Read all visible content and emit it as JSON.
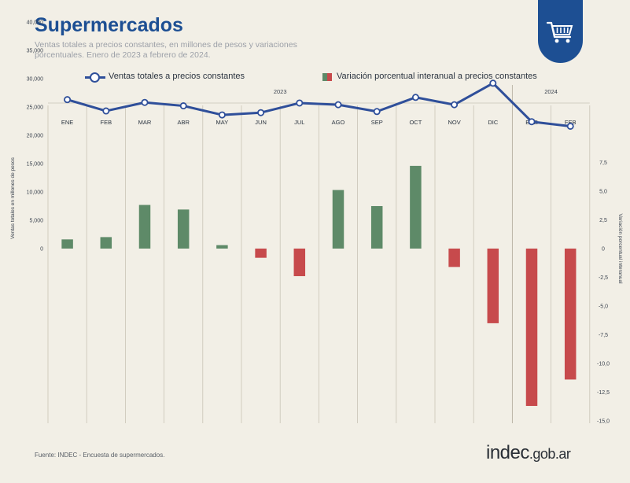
{
  "header": {
    "title": "Supermercados",
    "subtitle_line1": "Ventas totales a precios constantes, en millones de pesos y variaciones",
    "subtitle_line2": "porcentuales. Enero de 2023 a febrero de 2024."
  },
  "badge": {
    "icon": "shopping-cart-icon",
    "color": "#1d4f93"
  },
  "legend": {
    "line_label": "Ventas totales a precios constantes",
    "bar_label": "Variación porcentual interanual a precios constantes"
  },
  "colors": {
    "line": "#2f4f9a",
    "positive_bar": "#5e8a68",
    "negative_bar": "#c74a4c",
    "title": "#1d4f93"
  },
  "chart_data": {
    "type": "bar+line",
    "years": [
      {
        "label": "2023",
        "months": 12
      },
      {
        "label": "2024",
        "months": 2
      }
    ],
    "categories": [
      "ENE",
      "FEB",
      "MAR",
      "ABR",
      "MAY",
      "JUN",
      "JUL",
      "AGO",
      "SEP",
      "OCT",
      "NOV",
      "DIC",
      "ENE",
      "FEB"
    ],
    "left_axis": {
      "label": "Ventas totales en millones de pesos",
      "ticks": [
        "40,000",
        "35,000",
        "30,000",
        "25,000",
        "20,000",
        "15,000",
        "10,000",
        "5,000",
        "0"
      ],
      "tick_values": [
        40000,
        35000,
        30000,
        25000,
        20000,
        15000,
        10000,
        5000,
        0
      ],
      "ylim": [
        0,
        40000
      ]
    },
    "right_axis": {
      "label": "Variación porcentual interanual",
      "ticks": [
        "7,5",
        "5,0",
        "2,5",
        "0",
        "-2,5",
        "-5,0",
        "-7,5",
        "-10,0",
        "-12,5",
        "-15,0"
      ],
      "tick_values": [
        7.5,
        5.0,
        2.5,
        0,
        -2.5,
        -5.0,
        -7.5,
        -10.0,
        -12.5,
        -15.0
      ],
      "ylim": [
        -15,
        10
      ]
    },
    "series": [
      {
        "name": "Ventas totales a precios constantes",
        "kind": "line",
        "axis": "left",
        "values": [
          26300,
          24300,
          25800,
          25200,
          23600,
          24000,
          25700,
          25400,
          24200,
          26700,
          25400,
          29200,
          22400,
          21600
        ]
      },
      {
        "name": "Variación porcentual interanual a precios constantes",
        "kind": "bar",
        "axis": "right",
        "values": [
          0.8,
          1.0,
          3.8,
          3.4,
          0.3,
          -0.8,
          -2.4,
          5.1,
          3.7,
          7.2,
          -1.6,
          -6.5,
          -13.7,
          -11.4
        ]
      }
    ]
  },
  "footer": {
    "source": "Fuente: INDEC - Encuesta de supermercados.",
    "brand_main": "indec",
    "brand_suffix": ".gob.ar"
  }
}
